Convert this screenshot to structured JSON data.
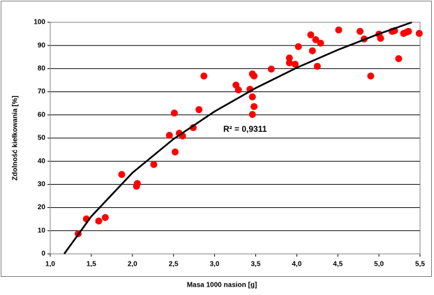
{
  "chart_data": {
    "type": "scatter",
    "xlabel": "Masa 1000 nasion [g]",
    "ylabel": "Zdolność kiełkowania [%]",
    "annotation": "R² = 0,9311",
    "x": [
      1.34,
      1.44,
      1.59,
      1.67,
      1.87,
      2.05,
      2.06,
      2.26,
      2.45,
      2.51,
      2.52,
      2.57,
      2.61,
      2.74,
      2.81,
      2.87,
      3.26,
      3.29,
      3.43,
      3.46,
      3.46,
      3.48,
      3.48,
      3.46,
      3.69,
      3.91,
      3.91,
      3.98,
      4.02,
      4.17,
      4.19,
      4.23,
      4.25,
      4.29,
      4.51,
      4.77,
      4.82,
      4.9,
      5.0,
      5.02,
      5.16,
      5.19,
      5.24,
      5.3,
      5.34,
      5.36,
      5.49
    ],
    "values": [
      8.7,
      15.1,
      14.2,
      15.7,
      34.3,
      29.2,
      30.4,
      38.6,
      51.2,
      60.8,
      44.0,
      52.1,
      50.9,
      54.5,
      62.3,
      76.8,
      72.9,
      70.8,
      71.1,
      67.8,
      77.7,
      76.8,
      63.6,
      60.2,
      79.8,
      84.6,
      82.5,
      81.9,
      89.5,
      94.6,
      87.7,
      92.5,
      81.0,
      91.0,
      96.7,
      96.1,
      92.8,
      76.8,
      94.9,
      93.1,
      96.1,
      96.4,
      84.3,
      95.2,
      95.8,
      96.1,
      95.2
    ],
    "color": "#ff0000",
    "trendline": {
      "x": [
        1.17,
        1.5,
        2,
        2.5,
        3,
        3.5,
        4,
        4.5,
        5,
        5.4
      ],
      "values": [
        0,
        16.2,
        35.0,
        49.6,
        61.5,
        71.6,
        80.4,
        88.1,
        95.0,
        100.0
      ],
      "color": "#000000"
    },
    "xlim": [
      1.0,
      5.5
    ],
    "ylim": [
      0,
      100
    ],
    "xticks": [
      {
        "value": 1.0,
        "label": "1,0"
      },
      {
        "value": 1.5,
        "label": "1,5"
      },
      {
        "value": 2.0,
        "label": "2,0"
      },
      {
        "value": 2.5,
        "label": "2,5"
      },
      {
        "value": 3.0,
        "label": "3,0"
      },
      {
        "value": 3.5,
        "label": "3,5"
      },
      {
        "value": 4.0,
        "label": "4,0"
      },
      {
        "value": 4.5,
        "label": "4,5"
      },
      {
        "value": 5.0,
        "label": "5,0"
      },
      {
        "value": 5.5,
        "label": "5,5"
      }
    ],
    "yticks": [
      0,
      10,
      20,
      30,
      40,
      50,
      60,
      70,
      80,
      90,
      100
    ],
    "grid": true
  }
}
